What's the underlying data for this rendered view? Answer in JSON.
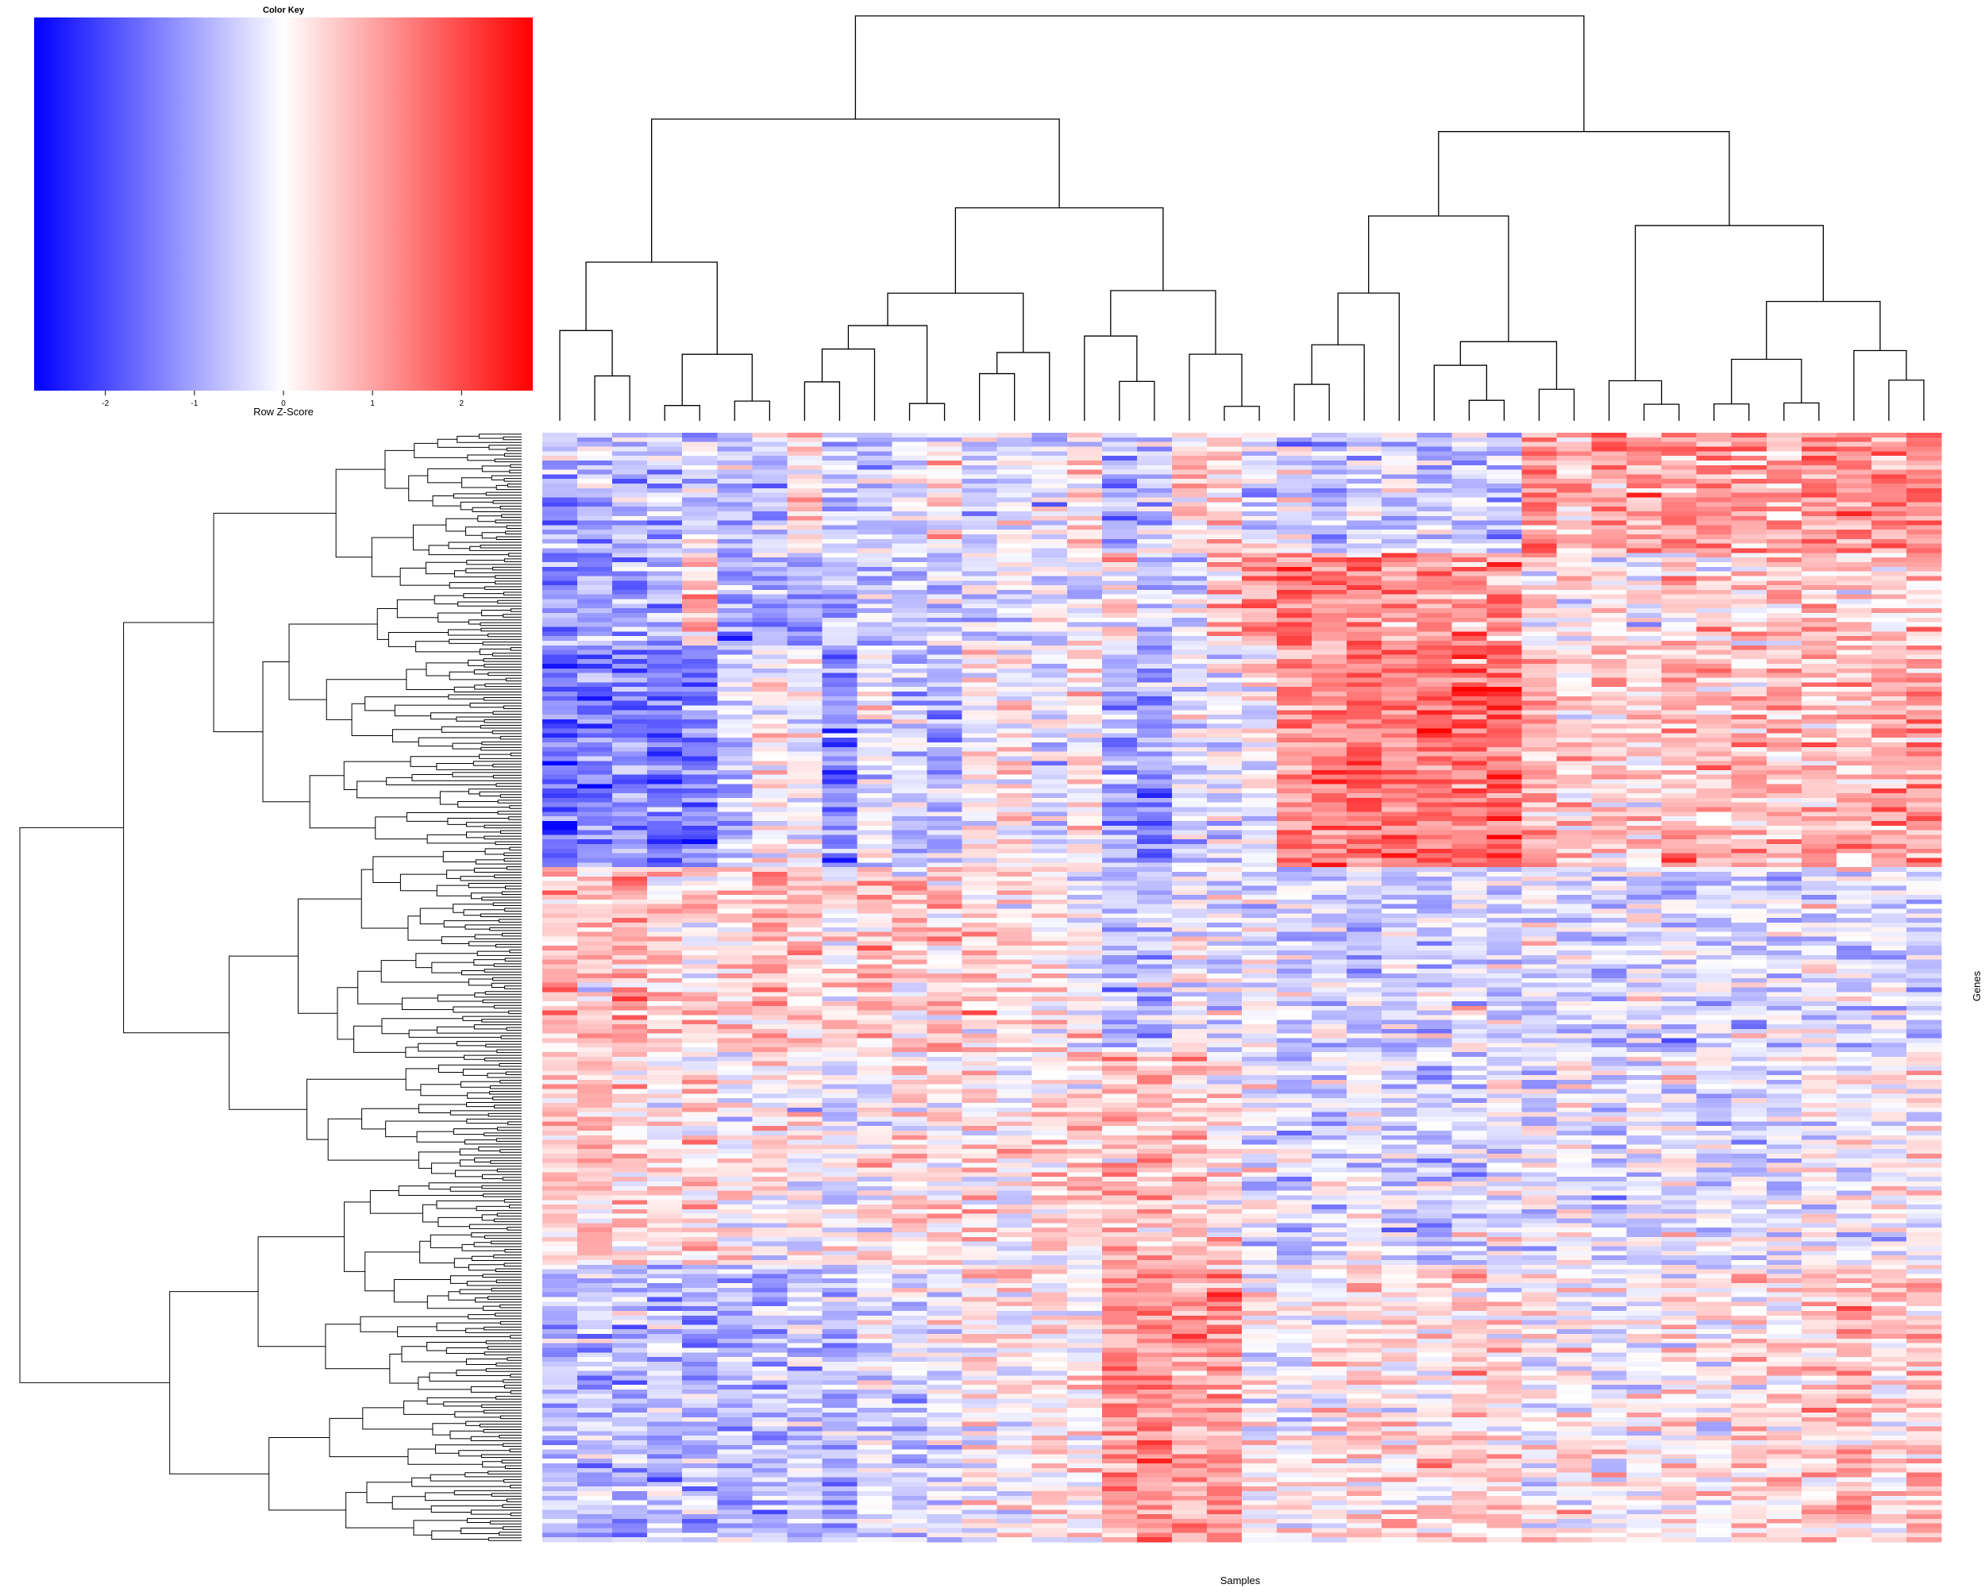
{
  "chart_data": {
    "type": "heatmap",
    "title": "",
    "xlabel": "Samples",
    "ylabel": "Genes",
    "n_samples": 40,
    "n_genes_approx": 1000,
    "row_dendrogram": true,
    "column_dendrogram": true,
    "cell_labels_shown": false,
    "color_scale": {
      "low": "#0000FF",
      "mid": "#FFFFFF",
      "high": "#FF0000",
      "min": -2.8,
      "max": 2.8
    },
    "color_key": {
      "title": "Color Key",
      "xlabel": "Row Z-Score",
      "ticks": [
        -2,
        -1,
        0,
        1,
        2
      ],
      "tick_labels": [
        "-2",
        "-1",
        "0",
        "1",
        "2"
      ]
    },
    "column_dendrogram_order_note": "",
    "row_blocks": [
      {
        "rows": [
          0.0,
          0.11
        ],
        "means": [
          -0.6,
          -0.5,
          -0.4,
          -0.5,
          -0.3,
          -0.5,
          -0.4,
          0.3,
          -0.4,
          -0.3,
          -0.2,
          0.2,
          -0.3,
          -0.2,
          -0.3,
          0.3,
          -0.6,
          -0.3,
          0.3,
          0.4,
          -0.5,
          -0.3,
          -0.6,
          -0.2,
          -0.3,
          -0.4,
          -0.3,
          -0.5,
          0.9,
          0.6,
          0.8,
          0.7,
          0.8,
          0.8,
          0.7,
          0.6,
          0.8,
          0.9,
          0.8,
          0.9
        ]
      },
      {
        "rows": [
          0.11,
          0.19
        ],
        "means": [
          -0.8,
          -0.7,
          -0.6,
          -0.6,
          0.6,
          -0.8,
          -0.6,
          -0.7,
          -0.4,
          -0.4,
          -0.5,
          -0.4,
          -0.4,
          -0.2,
          -0.1,
          -0.2,
          0.2,
          -0.4,
          -0.3,
          0.4,
          0.9,
          1.0,
          0.9,
          0.9,
          0.9,
          0.8,
          0.8,
          0.9,
          0.2,
          0.1,
          0.1,
          0.0,
          0.4,
          0.3,
          0.2,
          0.4,
          0.5,
          0.4,
          0.3,
          0.4
        ]
      },
      {
        "rows": [
          0.19,
          0.39
        ],
        "means": [
          -1.1,
          -1.0,
          -0.9,
          -1.1,
          -1.0,
          -0.4,
          0.1,
          0.0,
          -0.9,
          -0.2,
          -0.4,
          -0.5,
          0.0,
          0.2,
          -0.3,
          0.1,
          -0.7,
          -0.8,
          -0.2,
          -0.2,
          -0.1,
          0.9,
          1.0,
          1.1,
          1.0,
          1.1,
          1.1,
          1.3,
          0.7,
          0.3,
          0.3,
          0.4,
          0.6,
          0.5,
          0.6,
          0.5,
          0.5,
          0.5,
          0.7,
          0.8
        ]
      },
      {
        "rows": [
          0.39,
          0.56
        ],
        "means": [
          0.5,
          0.4,
          0.6,
          0.3,
          0.3,
          0.4,
          0.5,
          0.4,
          0.2,
          0.5,
          0.4,
          0.4,
          0.3,
          0.3,
          0.2,
          0.0,
          -0.5,
          -0.4,
          0.0,
          -0.1,
          -0.2,
          -0.3,
          -0.3,
          -0.4,
          -0.3,
          -0.4,
          -0.2,
          -0.3,
          -0.2,
          -0.3,
          -0.3,
          -0.2,
          -0.4,
          -0.3,
          -0.3,
          -0.3,
          -0.2,
          -0.3,
          -0.2,
          -0.3
        ]
      },
      {
        "rows": [
          0.56,
          0.75
        ],
        "means": [
          0.4,
          0.5,
          0.3,
          0.2,
          0.3,
          0.0,
          0.1,
          0.0,
          -0.1,
          0.1,
          0.3,
          0.2,
          0.2,
          0.0,
          0.2,
          0.4,
          0.5,
          0.6,
          0.4,
          0.2,
          -0.1,
          -0.3,
          -0.2,
          -0.1,
          -0.3,
          -0.4,
          -0.3,
          -0.2,
          -0.2,
          -0.1,
          -0.3,
          -0.2,
          -0.1,
          -0.2,
          -0.2,
          -0.1,
          0.0,
          -0.1,
          0.0,
          0.1
        ]
      },
      {
        "rows": [
          0.75,
          1.0
        ],
        "means": [
          -0.5,
          -0.4,
          -0.6,
          -0.5,
          -0.5,
          -0.6,
          -0.5,
          -0.4,
          -0.6,
          -0.2,
          -0.3,
          -0.1,
          0.1,
          0.0,
          0.2,
          0.1,
          0.8,
          0.9,
          0.7,
          0.8,
          0.1,
          0.0,
          0.1,
          0.2,
          0.3,
          0.2,
          0.4,
          0.3,
          0.0,
          0.1,
          -0.1,
          0.0,
          0.2,
          0.1,
          0.3,
          0.2,
          0.4,
          0.6,
          0.3,
          0.4
        ]
      }
    ]
  }
}
